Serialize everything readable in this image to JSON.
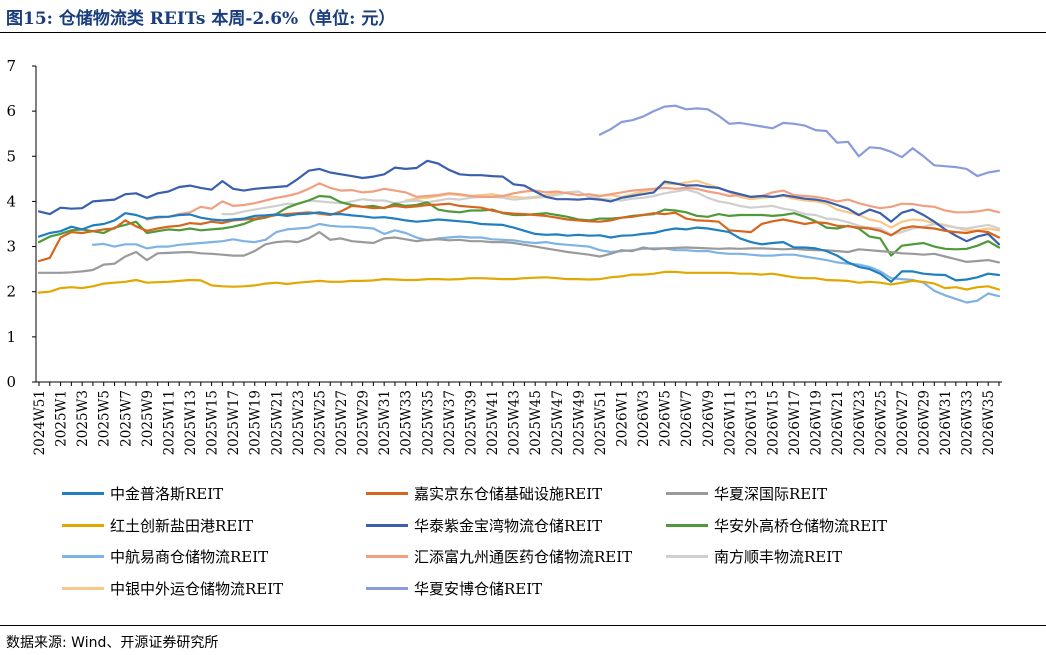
{
  "header": {
    "title": "图15:  仓储物流类 REITs 本周-2.6%（单位:  元）"
  },
  "footer": {
    "source": "数据来源:  Wind、开源证券研究所"
  },
  "chart_data": {
    "type": "line",
    "title": "",
    "xlabel": "",
    "ylabel": "",
    "ylim": [
      0,
      7
    ],
    "yticks": [
      0,
      1,
      2,
      3,
      4,
      5,
      6,
      7
    ],
    "grid": false,
    "legend_position": "bottom",
    "x": [
      "2024W51",
      "2024W52",
      "2025W1",
      "2025W2",
      "2025W3",
      "2025W4",
      "2025W5",
      "2025W6",
      "2025W7",
      "2025W8",
      "2025W9",
      "2025W10",
      "2025W11",
      "2025W12",
      "2025W13",
      "2025W14",
      "2025W15",
      "2025W16",
      "2025W17",
      "2025W18",
      "2025W19",
      "2025W20",
      "2025W21",
      "2025W22",
      "2025W23",
      "2025W24",
      "2025W25",
      "2025W26",
      "2025W27",
      "2025W28",
      "2025W29",
      "2025W30",
      "2025W31",
      "2025W32",
      "2025W33",
      "2025W34",
      "2025W35",
      "2025W36",
      "2025W37",
      "2025W38",
      "2025W39",
      "2025W40",
      "2025W41",
      "2025W42",
      "2025W43",
      "2025W44",
      "2025W45",
      "2025W46",
      "2025W47",
      "2025W48",
      "2025W49",
      "2025W50",
      "2025W51",
      "2025W52",
      "2026W1",
      "2026W2",
      "2026W3",
      "2026W4",
      "2026W5",
      "2026W6",
      "2026W7",
      "2026W8",
      "2026W9",
      "2026W10",
      "2026W11",
      "2026W12",
      "2026W13",
      "2026W14",
      "2026W15",
      "2026W16",
      "2026W17",
      "2026W18",
      "2026W19",
      "2026W20",
      "2026W21",
      "2026W22",
      "2026W23",
      "2026W24",
      "2026W25",
      "2026W26",
      "2026W27",
      "2026W28",
      "2026W29",
      "2026W30",
      "2026W31",
      "2026W32",
      "2026W33",
      "2026W34",
      "2026W35",
      "2026W36"
    ],
    "x_tick_labels": [
      "2024W51",
      "2025W1",
      "2025W3",
      "2025W5",
      "2025W7",
      "2025W9",
      "2025W11",
      "2025W13",
      "2025W15",
      "2025W17",
      "2025W19",
      "2025W21",
      "2025W23",
      "2025W25",
      "2025W27",
      "2025W29",
      "2025W31",
      "2025W33",
      "2025W35",
      "2025W37",
      "2025W39",
      "2025W41",
      "2025W43",
      "2025W45",
      "2025W47",
      "2025W49",
      "2025W51",
      "2026W1",
      "2026W3",
      "2026W5",
      "2026W7",
      "2026W9",
      "2026W11",
      "2026W13",
      "2026W15",
      "2026W17",
      "2026W19",
      "2026W21",
      "2026W23",
      "2026W25",
      "2026W27",
      "2026W29",
      "2026W31",
      "2026W33",
      "2026W35"
    ],
    "series": [
      {
        "name": "中金普洛斯REIT",
        "color": "#1f7fc0",
        "values": [
          3.22,
          3.3,
          3.34,
          3.44,
          3.38,
          3.47,
          3.5,
          3.58,
          3.74,
          3.7,
          3.62,
          3.66,
          3.66,
          3.7,
          3.71,
          3.64,
          3.6,
          3.58,
          3.6,
          3.62,
          3.68,
          3.69,
          3.71,
          3.68,
          3.72,
          3.73,
          3.76,
          3.72,
          3.72,
          3.69,
          3.67,
          3.64,
          3.65,
          3.62,
          3.58,
          3.55,
          3.57,
          3.6,
          3.58,
          3.56,
          3.54,
          3.5,
          3.49,
          3.48,
          3.42,
          3.35,
          3.28,
          3.26,
          3.27,
          3.24,
          3.26,
          3.24,
          3.25,
          3.2,
          3.24,
          3.25,
          3.28,
          3.3,
          3.36,
          3.4,
          3.38,
          3.42,
          3.4,
          3.36,
          3.32,
          3.18,
          3.1,
          3.05,
          3.08,
          3.1,
          2.98,
          2.98,
          2.96,
          2.9,
          2.8,
          2.65,
          2.55,
          2.5,
          2.4,
          2.22,
          2.45,
          2.45,
          2.4,
          2.38,
          2.37,
          2.25,
          2.27,
          2.32,
          2.4,
          2.37
        ]
      },
      {
        "name": "嘉实京东仓储基础设施REIT",
        "color": "#d6651e",
        "values": [
          2.68,
          2.75,
          3.2,
          3.32,
          3.3,
          3.34,
          3.38,
          3.4,
          3.58,
          3.45,
          3.35,
          3.4,
          3.44,
          3.46,
          3.52,
          3.5,
          3.55,
          3.52,
          3.58,
          3.6,
          3.62,
          3.65,
          3.7,
          3.72,
          3.74,
          3.76,
          3.73,
          3.7,
          3.78,
          3.9,
          3.88,
          3.85,
          3.86,
          3.9,
          3.87,
          3.89,
          3.92,
          3.93,
          3.95,
          3.9,
          3.88,
          3.86,
          3.8,
          3.75,
          3.73,
          3.72,
          3.7,
          3.68,
          3.64,
          3.6,
          3.58,
          3.56,
          3.55,
          3.58,
          3.64,
          3.66,
          3.7,
          3.74,
          3.72,
          3.75,
          3.62,
          3.58,
          3.57,
          3.55,
          3.36,
          3.34,
          3.32,
          3.5,
          3.56,
          3.6,
          3.55,
          3.5,
          3.54,
          3.52,
          3.46,
          3.45,
          3.42,
          3.4,
          3.35,
          3.25,
          3.4,
          3.45,
          3.42,
          3.4,
          3.35,
          3.32,
          3.3,
          3.35,
          3.32,
          3.2
        ]
      },
      {
        "name": "华夏深国际REIT",
        "color": "#9a9a9a",
        "values": [
          2.42,
          2.42,
          2.42,
          2.43,
          2.45,
          2.48,
          2.6,
          2.62,
          2.78,
          2.88,
          2.7,
          2.85,
          2.86,
          2.87,
          2.88,
          2.85,
          2.84,
          2.82,
          2.8,
          2.8,
          2.9,
          3.05,
          3.1,
          3.12,
          3.1,
          3.18,
          3.32,
          3.15,
          3.18,
          3.12,
          3.1,
          3.08,
          3.18,
          3.2,
          3.16,
          3.12,
          3.15,
          3.16,
          3.14,
          3.15,
          3.12,
          3.12,
          3.1,
          3.1,
          3.08,
          3.04,
          3.0,
          2.96,
          2.92,
          2.88,
          2.85,
          2.82,
          2.78,
          2.84,
          2.92,
          2.9,
          2.98,
          2.94,
          2.96,
          2.97,
          2.98,
          2.97,
          2.96,
          2.95,
          2.96,
          2.95,
          2.96,
          2.96,
          2.95,
          2.94,
          2.95,
          2.93,
          2.92,
          2.92,
          2.9,
          2.88,
          2.94,
          2.92,
          2.9,
          2.88,
          2.85,
          2.84,
          2.82,
          2.84,
          2.78,
          2.72,
          2.66,
          2.68,
          2.7,
          2.65
        ]
      },
      {
        "name": "红土创新盐田港REIT",
        "color": "#e0a800",
        "values": [
          1.98,
          2.0,
          2.08,
          2.1,
          2.08,
          2.12,
          2.18,
          2.2,
          2.22,
          2.26,
          2.2,
          2.21,
          2.22,
          2.24,
          2.26,
          2.25,
          2.14,
          2.12,
          2.11,
          2.12,
          2.14,
          2.18,
          2.2,
          2.17,
          2.2,
          2.22,
          2.24,
          2.22,
          2.22,
          2.24,
          2.24,
          2.25,
          2.28,
          2.27,
          2.26,
          2.26,
          2.28,
          2.28,
          2.27,
          2.28,
          2.3,
          2.3,
          2.29,
          2.28,
          2.28,
          2.3,
          2.31,
          2.32,
          2.3,
          2.28,
          2.28,
          2.27,
          2.28,
          2.32,
          2.34,
          2.38,
          2.38,
          2.4,
          2.44,
          2.44,
          2.42,
          2.42,
          2.42,
          2.42,
          2.42,
          2.4,
          2.4,
          2.38,
          2.4,
          2.36,
          2.32,
          2.3,
          2.3,
          2.26,
          2.25,
          2.24,
          2.2,
          2.22,
          2.2,
          2.16,
          2.2,
          2.24,
          2.22,
          2.18,
          2.08,
          2.1,
          2.05,
          2.1,
          2.12,
          2.05
        ]
      },
      {
        "name": "华泰紫金宝湾物流仓储REIT",
        "color": "#3a5fad",
        "values": [
          3.78,
          3.72,
          3.86,
          3.84,
          3.85,
          4.0,
          4.02,
          4.04,
          4.16,
          4.18,
          4.08,
          4.18,
          4.22,
          4.32,
          4.35,
          4.3,
          4.26,
          4.45,
          4.28,
          4.24,
          4.28,
          4.3,
          4.32,
          4.34,
          4.5,
          4.68,
          4.72,
          4.64,
          4.6,
          4.56,
          4.52,
          4.55,
          4.6,
          4.75,
          4.72,
          4.74,
          4.9,
          4.84,
          4.7,
          4.6,
          4.58,
          4.58,
          4.56,
          4.55,
          4.38,
          4.35,
          4.22,
          4.1,
          4.05,
          4.05,
          4.04,
          4.06,
          4.04,
          4.0,
          4.08,
          4.12,
          4.16,
          4.2,
          4.44,
          4.4,
          4.35,
          4.36,
          4.32,
          4.3,
          4.22,
          4.16,
          4.1,
          4.12,
          4.1,
          4.14,
          4.1,
          4.06,
          4.04,
          4.0,
          3.92,
          3.84,
          3.7,
          3.82,
          3.74,
          3.55,
          3.75,
          3.82,
          3.7,
          3.55,
          3.38,
          3.24,
          3.12,
          3.22,
          3.28,
          3.05
        ]
      },
      {
        "name": "华安外高桥仓储物流REIT",
        "color": "#4e9a3a",
        "values": [
          3.1,
          3.22,
          3.28,
          3.36,
          3.38,
          3.34,
          3.3,
          3.42,
          3.48,
          3.55,
          3.3,
          3.34,
          3.38,
          3.36,
          3.4,
          3.36,
          3.38,
          3.4,
          3.44,
          3.5,
          3.6,
          3.64,
          3.72,
          3.86,
          3.95,
          4.02,
          4.12,
          4.1,
          3.98,
          3.92,
          3.88,
          3.9,
          3.85,
          3.95,
          3.9,
          3.92,
          3.98,
          3.82,
          3.78,
          3.76,
          3.8,
          3.8,
          3.82,
          3.74,
          3.7,
          3.7,
          3.72,
          3.74,
          3.7,
          3.66,
          3.6,
          3.58,
          3.62,
          3.62,
          3.64,
          3.68,
          3.7,
          3.72,
          3.82,
          3.8,
          3.76,
          3.68,
          3.66,
          3.72,
          3.68,
          3.7,
          3.7,
          3.7,
          3.68,
          3.7,
          3.74,
          3.66,
          3.56,
          3.42,
          3.4,
          3.46,
          3.4,
          3.22,
          3.18,
          2.8,
          3.02,
          3.05,
          3.08,
          3.0,
          2.95,
          2.94,
          2.95,
          3.02,
          3.12,
          2.98
        ]
      },
      {
        "name": "中航易商仓储物流REIT",
        "color": "#7fb2e5",
        "values": [
          null,
          null,
          null,
          null,
          null,
          3.04,
          3.06,
          3.0,
          3.05,
          3.05,
          2.96,
          3.0,
          3.0,
          3.04,
          3.06,
          3.08,
          3.1,
          3.12,
          3.16,
          3.12,
          3.1,
          3.15,
          3.32,
          3.38,
          3.4,
          3.42,
          3.5,
          3.46,
          3.44,
          3.44,
          3.42,
          3.4,
          3.28,
          3.36,
          3.3,
          3.2,
          3.14,
          3.18,
          3.2,
          3.22,
          3.2,
          3.2,
          3.16,
          3.15,
          3.14,
          3.1,
          3.08,
          3.1,
          3.06,
          3.04,
          3.02,
          3.0,
          2.92,
          2.88,
          2.9,
          2.92,
          2.95,
          2.96,
          2.96,
          2.92,
          2.92,
          2.9,
          2.9,
          2.86,
          2.84,
          2.84,
          2.82,
          2.8,
          2.8,
          2.82,
          2.82,
          2.78,
          2.74,
          2.7,
          2.65,
          2.62,
          2.6,
          2.55,
          2.45,
          2.3,
          2.28,
          2.26,
          2.2,
          2.02,
          1.92,
          1.84,
          1.76,
          1.8,
          1.96,
          1.9
        ]
      },
      {
        "name": "汇添富九州通医药仓储物流REIT",
        "color": "#f0a080",
        "values": [
          null,
          null,
          null,
          null,
          null,
          null,
          null,
          null,
          null,
          null,
          3.6,
          3.64,
          3.66,
          3.72,
          3.76,
          3.88,
          3.84,
          4.0,
          3.9,
          3.92,
          3.96,
          4.02,
          4.08,
          4.12,
          4.18,
          4.28,
          4.4,
          4.3,
          4.24,
          4.25,
          4.2,
          4.22,
          4.28,
          4.24,
          4.2,
          4.1,
          4.12,
          4.14,
          4.18,
          4.16,
          4.12,
          4.1,
          4.1,
          4.12,
          4.18,
          4.22,
          4.24,
          4.2,
          4.22,
          4.18,
          4.14,
          4.16,
          4.12,
          4.16,
          4.2,
          4.24,
          4.26,
          4.28,
          4.3,
          4.28,
          4.3,
          4.28,
          4.22,
          4.18,
          4.12,
          4.14,
          4.1,
          4.12,
          4.2,
          4.24,
          4.14,
          4.12,
          4.1,
          4.06,
          4.0,
          4.04,
          3.96,
          3.9,
          3.85,
          3.88,
          3.95,
          3.94,
          3.9,
          3.88,
          3.8,
          3.76,
          3.76,
          3.78,
          3.82,
          3.76
        ]
      },
      {
        "name": "南方顺丰物流REIT",
        "color": "#cfcfcf",
        "values": [
          null,
          null,
          null,
          null,
          null,
          null,
          null,
          null,
          null,
          null,
          null,
          null,
          null,
          null,
          null,
          null,
          null,
          3.72,
          3.72,
          3.78,
          3.82,
          3.86,
          3.9,
          3.95,
          3.94,
          4.02,
          4.0,
          3.98,
          3.96,
          4.0,
          4.05,
          4.02,
          4.02,
          3.96,
          4.0,
          4.02,
          3.98,
          4.02,
          4.06,
          4.04,
          4.08,
          4.1,
          4.1,
          4.08,
          4.04,
          4.06,
          4.08,
          4.1,
          4.14,
          4.2,
          4.22,
          4.1,
          4.06,
          4.04,
          4.02,
          4.06,
          4.08,
          4.12,
          4.18,
          4.22,
          4.26,
          4.2,
          4.08,
          4.0,
          3.96,
          3.9,
          3.86,
          3.88,
          3.9,
          3.84,
          3.8,
          3.72,
          3.7,
          3.62,
          3.6,
          3.54,
          3.46,
          3.42,
          3.4,
          3.26,
          3.32,
          3.4,
          3.44,
          3.5,
          3.46,
          3.42,
          3.4,
          3.44,
          3.48,
          3.4
        ]
      },
      {
        "name": "中银中外运仓储物流REIT",
        "color": "#f8c888",
        "values": [
          null,
          null,
          null,
          null,
          null,
          null,
          null,
          null,
          null,
          null,
          null,
          null,
          null,
          null,
          null,
          null,
          null,
          null,
          null,
          null,
          null,
          null,
          null,
          null,
          null,
          null,
          null,
          null,
          null,
          null,
          null,
          null,
          null,
          null,
          4.02,
          4.06,
          4.08,
          4.12,
          4.16,
          4.14,
          4.12,
          4.14,
          4.16,
          4.12,
          4.1,
          4.08,
          4.1,
          4.14,
          4.18,
          4.2,
          4.22,
          4.1,
          4.12,
          4.14,
          4.1,
          4.16,
          4.22,
          4.26,
          4.4,
          4.38,
          4.42,
          4.46,
          4.38,
          4.3,
          4.2,
          4.1,
          4.05,
          4.08,
          4.1,
          4.12,
          4.06,
          4.02,
          4.0,
          3.95,
          3.82,
          3.76,
          3.7,
          3.6,
          3.55,
          3.42,
          3.55,
          3.6,
          3.58,
          3.52,
          3.48,
          3.42,
          3.36,
          3.36,
          3.4,
          3.36
        ]
      },
      {
        "name": "华夏安博仓储REIT",
        "color": "#8a9bdc",
        "values": [
          null,
          null,
          null,
          null,
          null,
          null,
          null,
          null,
          null,
          null,
          null,
          null,
          null,
          null,
          null,
          null,
          null,
          null,
          null,
          null,
          null,
          null,
          null,
          null,
          null,
          null,
          null,
          null,
          null,
          null,
          null,
          null,
          null,
          null,
          null,
          null,
          null,
          null,
          null,
          null,
          null,
          null,
          null,
          null,
          null,
          null,
          null,
          null,
          null,
          null,
          null,
          null,
          5.48,
          5.6,
          5.76,
          5.8,
          5.88,
          6.0,
          6.1,
          6.12,
          6.04,
          6.06,
          6.04,
          5.9,
          5.72,
          5.74,
          5.7,
          5.66,
          5.62,
          5.74,
          5.72,
          5.68,
          5.58,
          5.56,
          5.3,
          5.32,
          5.0,
          5.2,
          5.18,
          5.1,
          4.98,
          5.18,
          5.0,
          4.8,
          4.78,
          4.76,
          4.72,
          4.56,
          4.64,
          4.68
        ]
      }
    ]
  }
}
